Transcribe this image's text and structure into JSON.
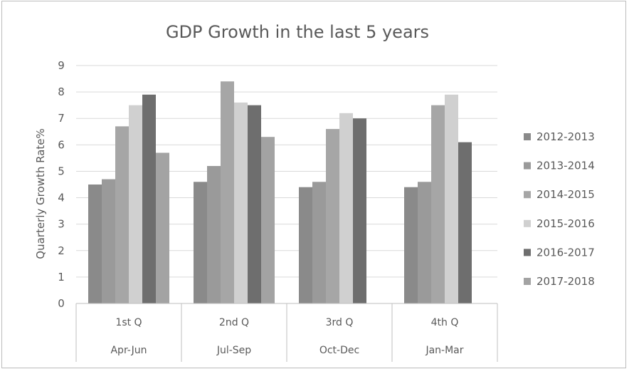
{
  "chart_data": {
    "type": "bar",
    "title": "GDP Growth in the last 5 years",
    "ylabel": "Quarterly Growth Rate%",
    "xlabel": "",
    "ylim": [
      0,
      9
    ],
    "yticks": [
      "0",
      "1",
      "2",
      "3",
      "4",
      "5",
      "6",
      "7",
      "8",
      "9"
    ],
    "grid": true,
    "legend_position": "right",
    "categories": [
      "1st Q",
      "2nd Q",
      "3rd Q",
      "4th Q"
    ],
    "subcategories": [
      "Apr-Jun",
      "Jul-Sep",
      "Oct-Dec",
      "Jan-Mar"
    ],
    "series": [
      {
        "name": "2012-2013",
        "color": "#8a8a8a",
        "values": [
          4.5,
          4.6,
          4.4,
          4.4
        ]
      },
      {
        "name": "2013-2014",
        "color": "#9a9a9a",
        "values": [
          4.7,
          5.2,
          4.6,
          4.6
        ]
      },
      {
        "name": "2014-2015",
        "color": "#a6a6a6",
        "values": [
          6.7,
          8.4,
          6.6,
          7.5
        ]
      },
      {
        "name": "2015-2016",
        "color": "#d0d0d0",
        "values": [
          7.5,
          7.6,
          7.2,
          7.9
        ]
      },
      {
        "name": "2016-2017",
        "color": "#6e6e6e",
        "values": [
          7.9,
          7.5,
          7.0,
          6.1
        ]
      },
      {
        "name": "2017-2018",
        "color": "#a3a3a3",
        "values": [
          5.7,
          6.3,
          null,
          null
        ]
      }
    ]
  }
}
